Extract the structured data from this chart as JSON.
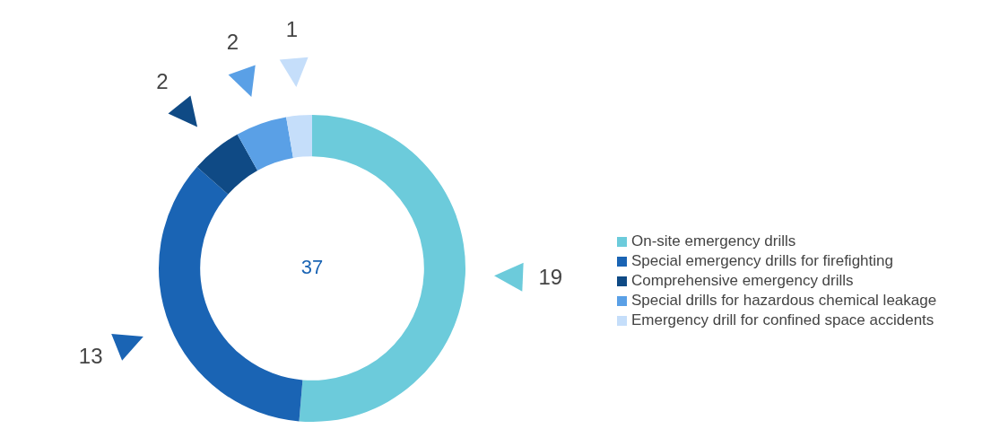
{
  "chart_data": {
    "type": "donut",
    "categories": [
      "On-site emergency drills",
      "Special emergency drills for firefighting",
      "Comprehensive emergency drills",
      "Special drills for hazardous chemical leakage",
      "Emergency drill for confined space accidents"
    ],
    "values": [
      19,
      13,
      2,
      2,
      1
    ],
    "colors": [
      "#6ccbdb",
      "#1a64b4",
      "#0f4a85",
      "#5aa0e6",
      "#c5defa"
    ],
    "data_labels": true,
    "legend": "right",
    "annotations": [
      "37"
    ]
  }
}
